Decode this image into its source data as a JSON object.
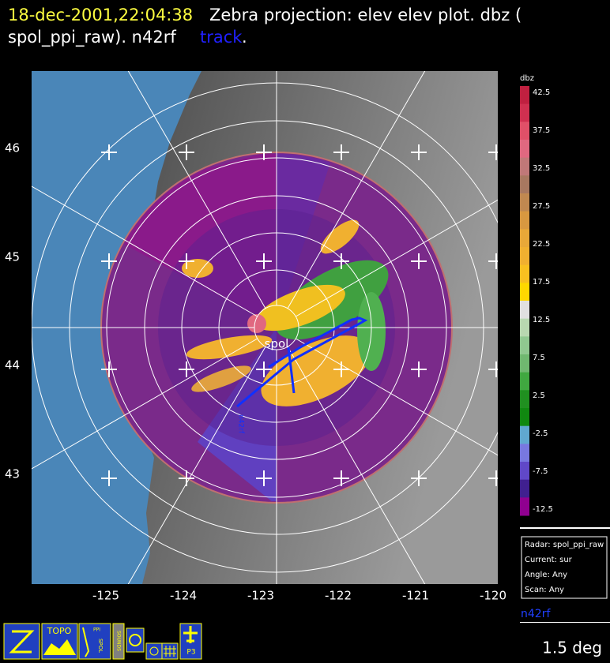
{
  "header": {
    "time": "18-dec-2001,22:04:38",
    "line1": "Zebra projection: elev elev  plot.  dbz (",
    "line2": "spol_ppi_raw).   n42rf",
    "track": "track",
    "end": "."
  },
  "map": {
    "lon_labels": [
      "-125",
      "-124",
      "-123",
      "-122",
      "-121",
      "-120"
    ],
    "lat_labels": [
      "46",
      "45",
      "44",
      "43"
    ],
    "center_label": "spol",
    "aircraft_label": "n42rf"
  },
  "colorbar": {
    "unit": "dbz",
    "ticks": [
      "42.5",
      "37.5",
      "32.5",
      "27.5",
      "22.5",
      "17.5",
      "12.5",
      "7.5",
      "2.5",
      "-2.5",
      "-7.5",
      "-12.5"
    ]
  },
  "info": {
    "lines": [
      "Radar: spol_ppi_raw",
      "Current: sur",
      "Angle: Any",
      "Scan: Any"
    ]
  },
  "platform": "n42rf",
  "toolbar": {
    "topo": "TOPO",
    "ppi": "PPI",
    "spol": "SPOL",
    "sounds": "SOUNDS",
    "p3": "P3"
  },
  "elevation": "1.5 deg"
}
